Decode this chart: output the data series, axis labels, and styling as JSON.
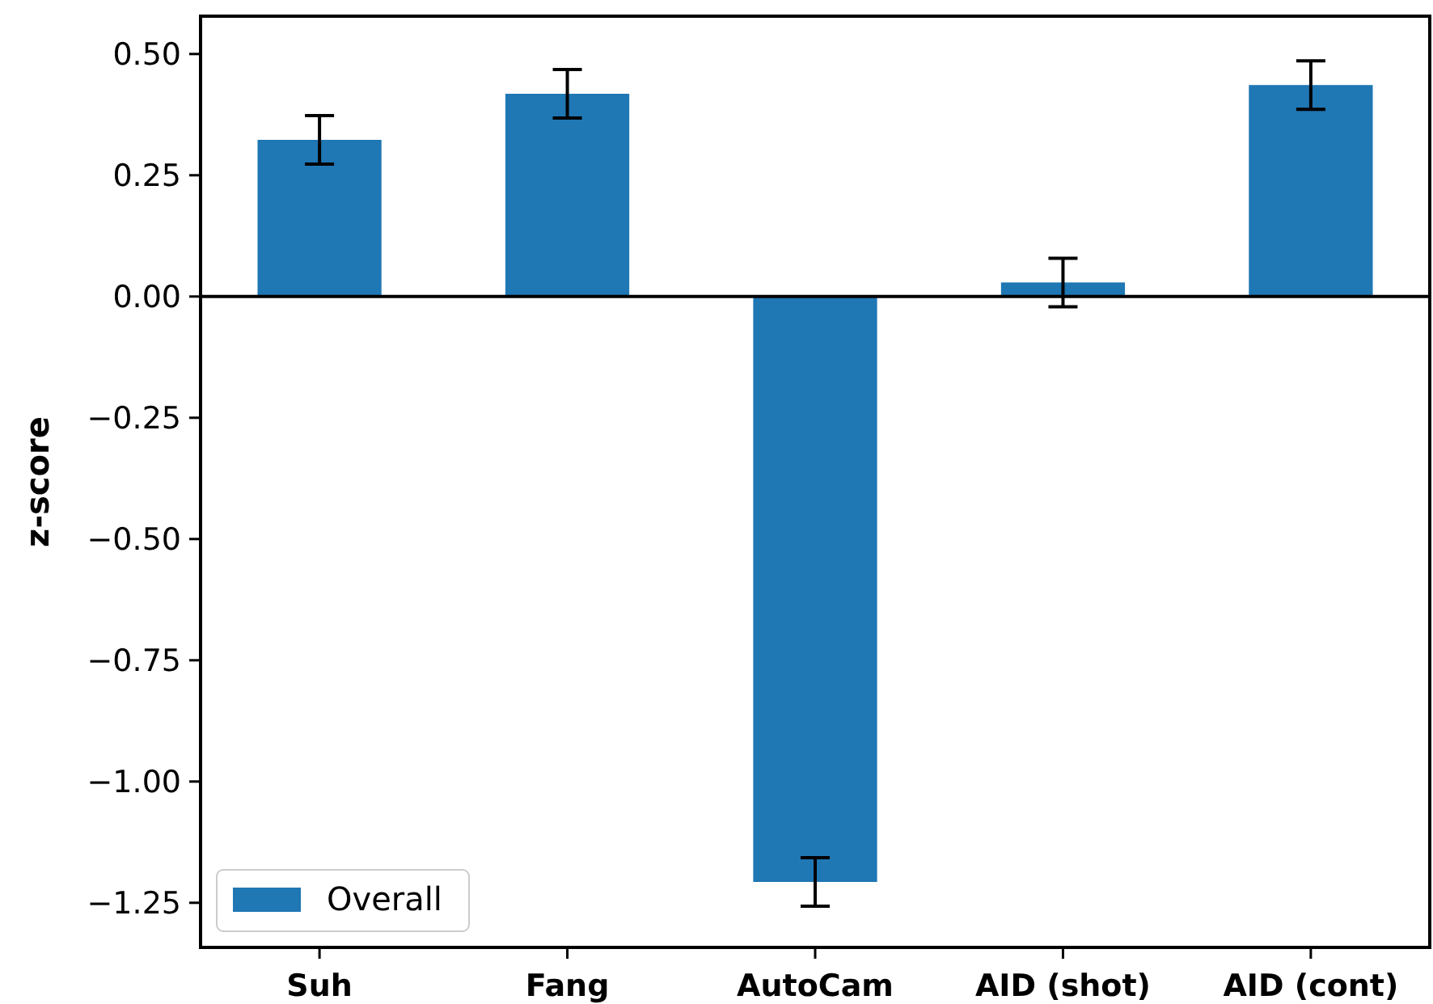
{
  "chart_data": {
    "type": "bar",
    "ylabel": "z-score",
    "categories": [
      "Suh",
      "Fang",
      "AutoCam",
      "AID (shot)",
      "AID (cont)"
    ],
    "series": [
      {
        "name": "Overall",
        "color": "#1f77b4",
        "values": [
          0.323,
          0.418,
          -1.207,
          0.029,
          0.436
        ],
        "errors": [
          0.05,
          0.05,
          0.05,
          0.05,
          0.05
        ]
      }
    ],
    "ylim": [
      -1.342,
      0.578
    ],
    "yticks": [
      {
        "value": 0.5,
        "label": "0.50"
      },
      {
        "value": 0.25,
        "label": "0.25"
      },
      {
        "value": 0,
        "label": "0.00"
      },
      {
        "value": -0.25,
        "label": "−0.25"
      },
      {
        "value": -0.5,
        "label": "−0.50"
      },
      {
        "value": -0.75,
        "label": "−0.75"
      },
      {
        "value": -1,
        "label": "−1.00"
      },
      {
        "value": -1.25,
        "label": "−1.25"
      }
    ],
    "ref_lines": [
      {
        "axis": "y",
        "value": 0,
        "color": "#000000"
      }
    ],
    "legend": "bottom left",
    "grid": false
  }
}
